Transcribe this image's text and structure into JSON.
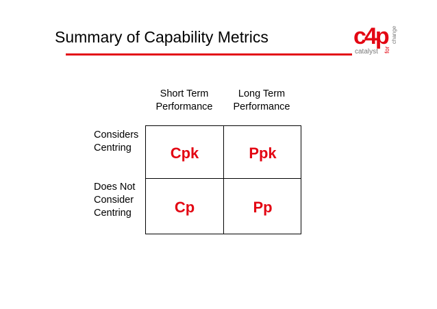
{
  "slide": {
    "title": "Summary of Capability Metrics"
  },
  "logo": {
    "mark": "c4p",
    "word_catalyst": "catalyst",
    "word_for": "for",
    "word_change": "change",
    "accent_color": "#e30613",
    "grey_color": "#777777"
  },
  "table": {
    "column_headers": [
      {
        "line1": "Short Term",
        "line2": "Performance"
      },
      {
        "line1": "Long Term",
        "line2": "Performance"
      }
    ],
    "row_headers": [
      {
        "line1": "Considers",
        "line2": "Centring"
      },
      {
        "line1": "Does Not",
        "line2": "Consider",
        "line3": "Centring"
      }
    ],
    "cells": [
      [
        "Cpk",
        "Ppk"
      ],
      [
        "Cp",
        "Pp"
      ]
    ]
  }
}
